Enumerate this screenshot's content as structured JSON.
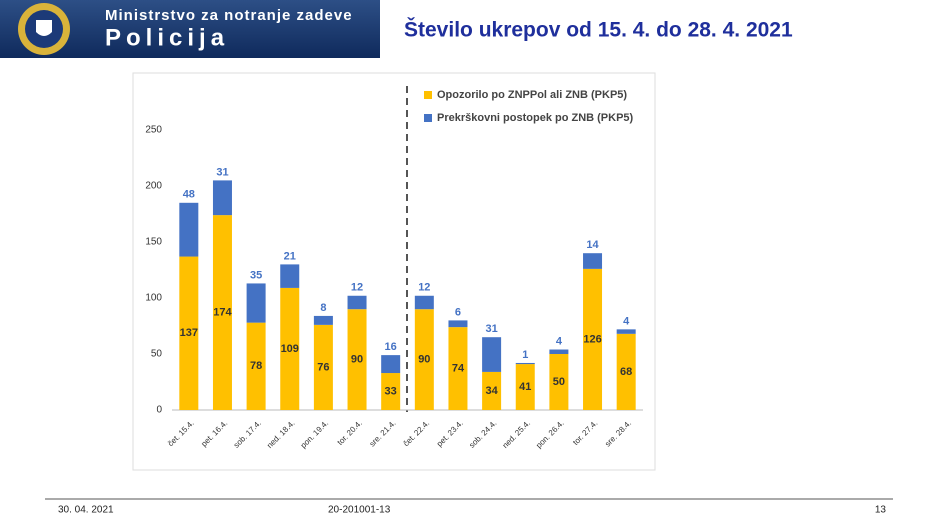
{
  "header": {
    "ministry": "Ministrstvo za notranje zadeve",
    "police": "Policija",
    "title": "Število ukrepov od 15. 4. do 28. 4. 2021"
  },
  "chart_data": {
    "type": "stacked-bar",
    "categories": [
      "čet. 15.4.",
      "pet. 16.4.",
      "sob. 17.4.",
      "ned. 18.4.",
      "pon. 19.4.",
      "tor. 20.4.",
      "sre. 21.4.",
      "čet. 22.4.",
      "pet. 23.4.",
      "sob. 24.4.",
      "ned. 25.4.",
      "pon. 26.4.",
      "tor. 27.4.",
      "sre. 28.4."
    ],
    "series": [
      {
        "name": "Opozorilo po ZNPPol ali ZNB (PKP5)",
        "color": "#FFC000",
        "values": [
          137,
          174,
          78,
          109,
          76,
          90,
          33,
          90,
          74,
          34,
          41,
          50,
          126,
          68
        ]
      },
      {
        "name": "Prekrškovni postopek po ZNB (PKP5)",
        "color": "#4472C4",
        "values": [
          48,
          31,
          35,
          21,
          8,
          12,
          16,
          12,
          6,
          31,
          1,
          4,
          14,
          4
        ]
      }
    ],
    "ylim": [
      0,
      250
    ],
    "yticks": [
      0,
      50,
      100,
      150,
      200,
      250
    ]
  },
  "footer": {
    "date": "30. 04. 2021",
    "code": "20-201001-13",
    "page": "13"
  }
}
